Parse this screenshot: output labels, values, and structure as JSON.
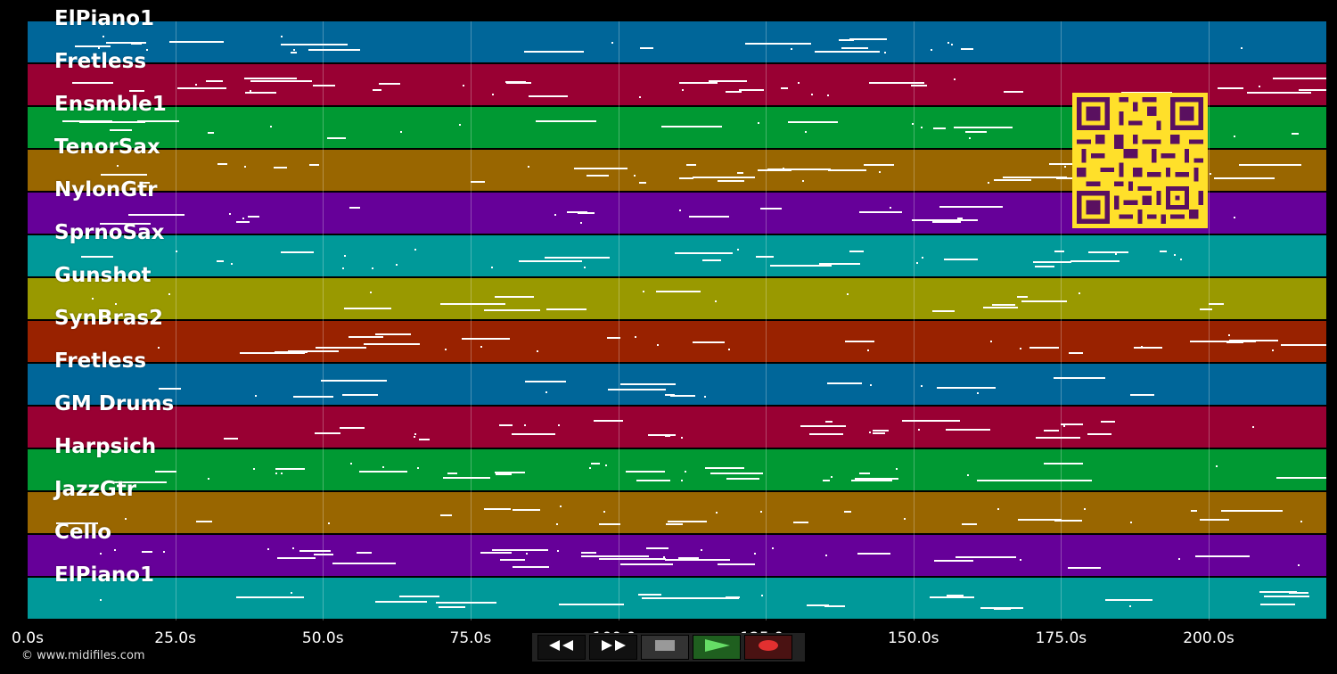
{
  "tracks": [
    {
      "name": "ElPiano1",
      "color": "#006699"
    },
    {
      "name": "Fretless",
      "color": "#990033"
    },
    {
      "name": "Ensmble1",
      "color": "#009933"
    },
    {
      "name": "TenorSax",
      "color": "#996600"
    },
    {
      "name": "NylonGtr",
      "color": "#660099"
    },
    {
      "name": "SprnoSax",
      "color": "#009999"
    },
    {
      "name": "Gunshot",
      "color": "#999900"
    },
    {
      "name": "SynBras2",
      "color": "#992200"
    },
    {
      "name": "Fretless",
      "color": "#006699"
    },
    {
      "name": "GM Drums",
      "color": "#990033"
    },
    {
      "name": "Harpsich",
      "color": "#009933"
    },
    {
      "name": "JazzGtr",
      "color": "#996600"
    },
    {
      "name": "Cello",
      "color": "#660099"
    },
    {
      "name": "ElPiano1",
      "color": "#009999"
    }
  ],
  "timeline": {
    "ticks": [
      {
        "label": "0.0s",
        "seconds": 0
      },
      {
        "label": "25.0s",
        "seconds": 25
      },
      {
        "label": "50.0s",
        "seconds": 50
      },
      {
        "label": "75.0s",
        "seconds": 75
      },
      {
        "label": "100.0s",
        "seconds": 100
      },
      {
        "label": "125.0s",
        "seconds": 125
      },
      {
        "label": "150.0s",
        "seconds": 150
      },
      {
        "label": "175.0s",
        "seconds": 175
      },
      {
        "label": "200.0s",
        "seconds": 200
      }
    ]
  },
  "controls": {
    "rewind": "rewind-icon",
    "fast_forward": "fast-forward-icon",
    "stop": "stop-icon",
    "play": "play-icon",
    "record": "record-icon"
  },
  "copyright": "© www.midifiles.com",
  "qr_code": "qr-code"
}
